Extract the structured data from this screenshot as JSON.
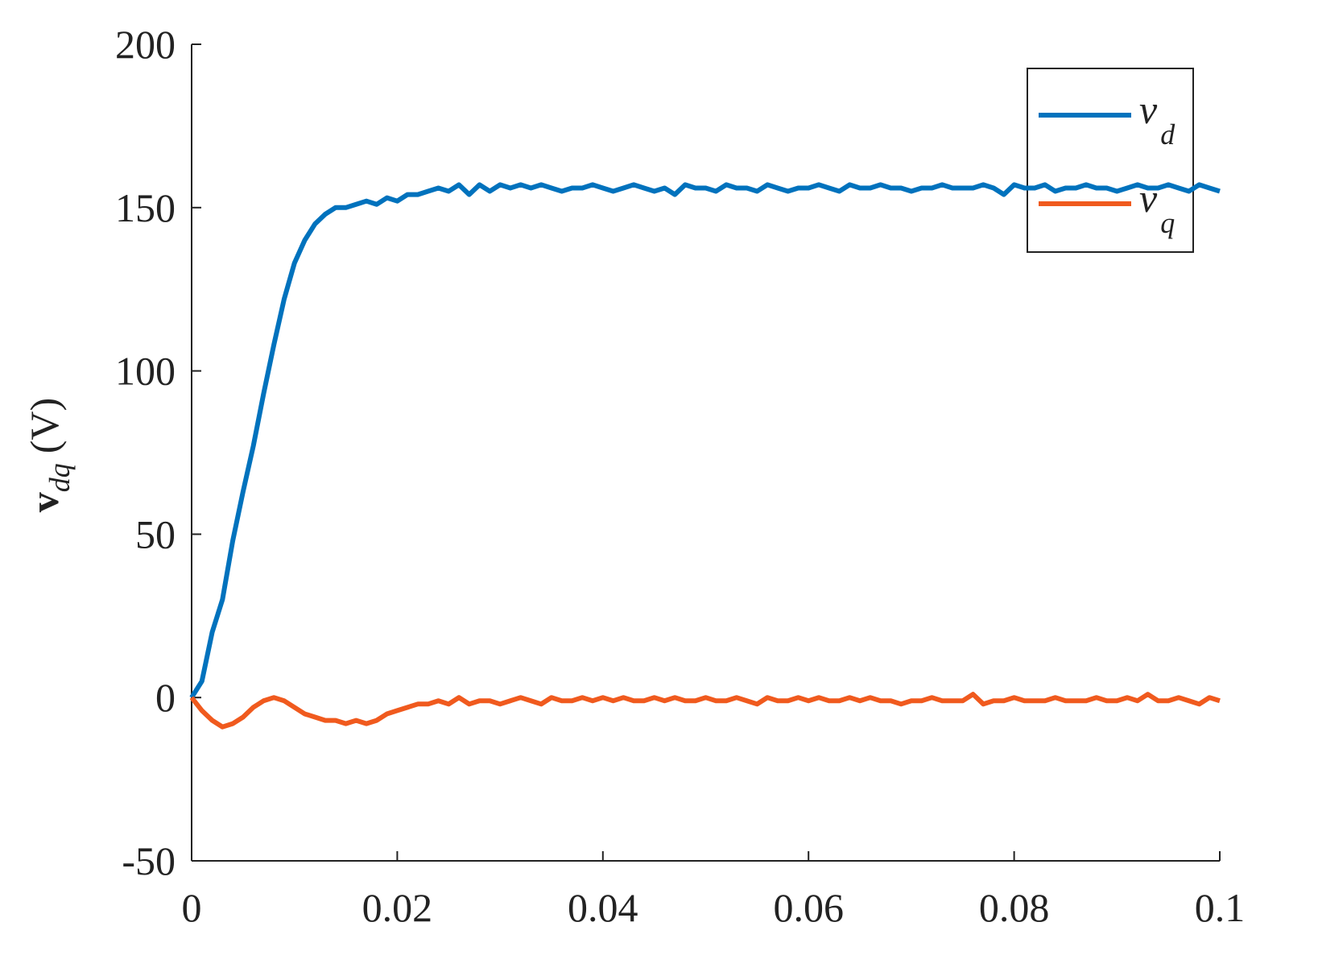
{
  "chart_data": {
    "type": "line",
    "ylabel": "v",
    "ylabel_subscript": "dq",
    "ylabel_unit": "(V)",
    "xlim": [
      0,
      0.1
    ],
    "xticks": [
      0,
      0.02,
      0.04,
      0.06,
      0.08,
      0.1
    ],
    "ylim": [
      -50,
      200
    ],
    "yticks": [
      -50,
      0,
      50,
      100,
      150,
      200
    ],
    "legend": "upper right",
    "x": [
      0,
      0.001,
      0.002,
      0.003,
      0.004,
      0.005,
      0.006,
      0.007,
      0.008,
      0.009,
      0.01,
      0.011,
      0.012,
      0.013,
      0.014,
      0.015,
      0.016,
      0.017,
      0.018,
      0.019,
      0.02,
      0.021,
      0.022,
      0.023,
      0.024,
      0.025,
      0.026,
      0.027,
      0.028,
      0.029,
      0.03,
      0.031,
      0.032,
      0.033,
      0.034,
      0.035,
      0.036,
      0.037,
      0.038,
      0.039,
      0.04,
      0.041,
      0.042,
      0.043,
      0.044,
      0.045,
      0.046,
      0.047,
      0.048,
      0.049,
      0.05,
      0.051,
      0.052,
      0.053,
      0.054,
      0.055,
      0.056,
      0.057,
      0.058,
      0.059,
      0.06,
      0.061,
      0.062,
      0.063,
      0.064,
      0.065,
      0.066,
      0.067,
      0.068,
      0.069,
      0.07,
      0.071,
      0.072,
      0.073,
      0.074,
      0.075,
      0.076,
      0.077,
      0.078,
      0.079,
      0.08,
      0.081,
      0.082,
      0.083,
      0.084,
      0.085,
      0.086,
      0.087,
      0.088,
      0.089,
      0.09,
      0.091,
      0.092,
      0.093,
      0.094,
      0.095,
      0.096,
      0.097,
      0.098,
      0.099,
      0.1
    ],
    "series": [
      {
        "name": "v",
        "name_subscript": "d",
        "color": "#0072BD",
        "values": [
          0,
          5,
          20,
          30,
          48,
          63,
          77,
          93,
          108,
          122,
          133,
          140,
          145,
          148,
          150,
          150,
          151,
          152,
          151,
          153,
          152,
          154,
          154,
          155,
          156,
          155,
          157,
          154,
          157,
          155,
          157,
          156,
          157,
          156,
          157,
          156,
          155,
          156,
          156,
          157,
          156,
          155,
          156,
          157,
          156,
          155,
          156,
          154,
          157,
          156,
          156,
          155,
          157,
          156,
          156,
          155,
          157,
          156,
          155,
          156,
          156,
          157,
          156,
          155,
          157,
          156,
          156,
          157,
          156,
          156,
          155,
          156,
          156,
          157,
          156,
          156,
          156,
          157,
          156,
          154,
          157,
          156,
          156,
          157,
          155,
          156,
          156,
          157,
          156,
          156,
          155,
          156,
          157,
          156,
          156,
          157,
          156,
          155,
          157,
          156,
          155
        ]
      },
      {
        "name": "v",
        "name_subscript": "q",
        "color": "#F05A1E",
        "values": [
          0,
          -4,
          -7,
          -9,
          -8,
          -6,
          -3,
          -1,
          0,
          -1,
          -3,
          -5,
          -6,
          -7,
          -7,
          -8,
          -7,
          -8,
          -7,
          -5,
          -4,
          -3,
          -2,
          -2,
          -1,
          -2,
          0,
          -2,
          -1,
          -1,
          -2,
          -1,
          0,
          -1,
          -2,
          0,
          -1,
          -1,
          0,
          -1,
          0,
          -1,
          0,
          -1,
          -1,
          0,
          -1,
          0,
          -1,
          -1,
          0,
          -1,
          -1,
          0,
          -1,
          -2,
          0,
          -1,
          -1,
          0,
          -1,
          0,
          -1,
          -1,
          0,
          -1,
          0,
          -1,
          -1,
          -2,
          -1,
          -1,
          0,
          -1,
          -1,
          -1,
          1,
          -2,
          -1,
          -1,
          0,
          -1,
          -1,
          -1,
          0,
          -1,
          -1,
          -1,
          0,
          -1,
          -1,
          0,
          -1,
          1,
          -1,
          -1,
          0,
          -1,
          -2,
          0,
          -1
        ]
      }
    ]
  }
}
